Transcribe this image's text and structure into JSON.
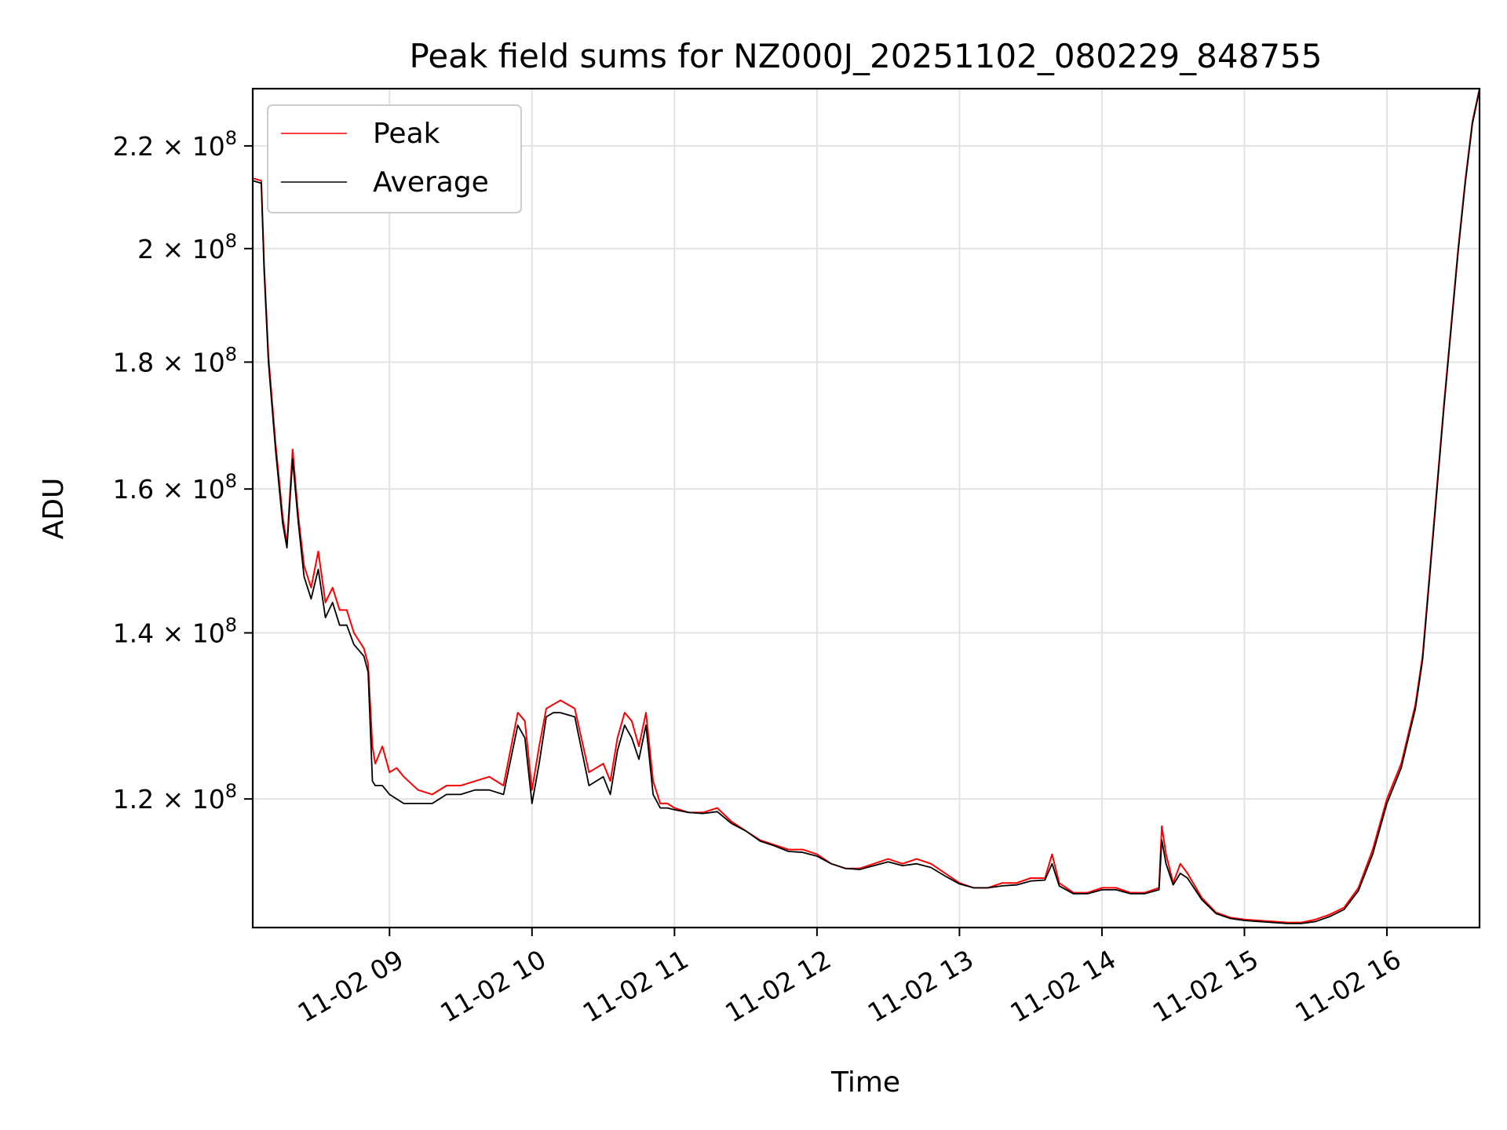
{
  "chart_data": {
    "type": "line",
    "title": "Peak field sums for NZ000J_20251102_080229_848755",
    "xlabel": "Time",
    "ylabel": "ADU",
    "grid": true,
    "legend_position": "top-left",
    "x_unit": "hours",
    "xlim": [
      8.04,
      16.65
    ],
    "ylim": [
      106500000,
      232000000
    ],
    "x_ticks": [
      {
        "value": 9,
        "label": "11-02 09"
      },
      {
        "value": 10,
        "label": "11-02 10"
      },
      {
        "value": 11,
        "label": "11-02 11"
      },
      {
        "value": 12,
        "label": "11-02 12"
      },
      {
        "value": 13,
        "label": "11-02 13"
      },
      {
        "value": 14,
        "label": "11-02 14"
      },
      {
        "value": 15,
        "label": "11-02 15"
      },
      {
        "value": 16,
        "label": "11-02 16"
      }
    ],
    "y_ticks": [
      {
        "value": 120000000,
        "mantissa": "1.2",
        "exp": "8"
      },
      {
        "value": 140000000,
        "mantissa": "1.4",
        "exp": "8"
      },
      {
        "value": 160000000,
        "mantissa": "1.6",
        "exp": "8"
      },
      {
        "value": 180000000,
        "mantissa": "1.8",
        "exp": "8"
      },
      {
        "value": 200000000,
        "mantissa": "2",
        "exp": "8"
      },
      {
        "value": 220000000,
        "mantissa": "2.2",
        "exp": "8"
      }
    ],
    "series": [
      {
        "name": "Peak",
        "color": "#ff0000",
        "x": [
          8.04,
          8.1,
          8.12,
          8.15,
          8.2,
          8.25,
          8.28,
          8.32,
          8.36,
          8.4,
          8.45,
          8.5,
          8.55,
          8.6,
          8.65,
          8.7,
          8.75,
          8.82,
          8.85,
          8.88,
          8.9,
          8.95,
          9.0,
          9.05,
          9.1,
          9.2,
          9.3,
          9.4,
          9.5,
          9.6,
          9.7,
          9.8,
          9.9,
          9.95,
          10.0,
          10.05,
          10.1,
          10.15,
          10.2,
          10.3,
          10.4,
          10.5,
          10.55,
          10.6,
          10.65,
          10.7,
          10.75,
          10.8,
          10.85,
          10.9,
          10.95,
          11.0,
          11.1,
          11.2,
          11.3,
          11.4,
          11.5,
          11.6,
          11.7,
          11.8,
          11.9,
          12.0,
          12.1,
          12.2,
          12.3,
          12.4,
          12.5,
          12.6,
          12.7,
          12.8,
          12.9,
          13.0,
          13.1,
          13.2,
          13.3,
          13.4,
          13.5,
          13.6,
          13.65,
          13.7,
          13.8,
          13.9,
          14.0,
          14.1,
          14.2,
          14.3,
          14.4,
          14.42,
          14.45,
          14.5,
          14.55,
          14.6,
          14.7,
          14.8,
          14.9,
          15.0,
          15.1,
          15.2,
          15.3,
          15.4,
          15.5,
          15.6,
          15.7,
          15.8,
          15.9,
          16.0,
          16.1,
          16.2,
          16.25,
          16.3,
          16.35,
          16.4,
          16.45,
          16.5,
          16.55,
          16.6,
          16.65
        ],
        "y": [
          213500000,
          213000000,
          197000000,
          181000000,
          167000000,
          156000000,
          152000000,
          166000000,
          156000000,
          149000000,
          146000000,
          151000000,
          144000000,
          146000000,
          143000000,
          143000000,
          140000000,
          138000000,
          136000000,
          126000000,
          124000000,
          126000000,
          123000000,
          123500000,
          122500000,
          121000000,
          120500000,
          121500000,
          121500000,
          122000000,
          122500000,
          121500000,
          130000000,
          129000000,
          121000000,
          126000000,
          130500000,
          131000000,
          131500000,
          130500000,
          123000000,
          124000000,
          122000000,
          127000000,
          130000000,
          129000000,
          126000000,
          130000000,
          122000000,
          119500000,
          119500000,
          119000000,
          118500000,
          118500000,
          119000000,
          117500000,
          116500000,
          115500000,
          115000000,
          114500000,
          114500000,
          114000000,
          113000000,
          112500000,
          112500000,
          113000000,
          113500000,
          113000000,
          113500000,
          113000000,
          112000000,
          111000000,
          110500000,
          110500000,
          111000000,
          111000000,
          111500000,
          111500000,
          114000000,
          111000000,
          110000000,
          110000000,
          110500000,
          110500000,
          110000000,
          110000000,
          110500000,
          117000000,
          114000000,
          111000000,
          113000000,
          112000000,
          109500000,
          108000000,
          107500000,
          107300000,
          107200000,
          107100000,
          107000000,
          107000000,
          107300000,
          107800000,
          108500000,
          110500000,
          114500000,
          120000000,
          124000000,
          131000000,
          137000000,
          148000000,
          160000000,
          173000000,
          186000000,
          200000000,
          213000000,
          225000000,
          232000000
        ]
      },
      {
        "name": "Average",
        "color": "#000000",
        "x": [
          8.04,
          8.1,
          8.12,
          8.15,
          8.2,
          8.25,
          8.28,
          8.32,
          8.36,
          8.4,
          8.45,
          8.5,
          8.55,
          8.6,
          8.65,
          8.7,
          8.75,
          8.82,
          8.85,
          8.88,
          8.9,
          8.95,
          9.0,
          9.05,
          9.1,
          9.2,
          9.3,
          9.4,
          9.5,
          9.6,
          9.7,
          9.8,
          9.9,
          9.95,
          10.0,
          10.05,
          10.1,
          10.15,
          10.2,
          10.3,
          10.4,
          10.5,
          10.55,
          10.6,
          10.65,
          10.7,
          10.75,
          10.8,
          10.85,
          10.9,
          10.95,
          11.0,
          11.1,
          11.2,
          11.3,
          11.4,
          11.5,
          11.6,
          11.7,
          11.8,
          11.9,
          12.0,
          12.1,
          12.2,
          12.3,
          12.4,
          12.5,
          12.6,
          12.7,
          12.8,
          12.9,
          13.0,
          13.1,
          13.2,
          13.3,
          13.4,
          13.5,
          13.6,
          13.65,
          13.7,
          13.8,
          13.9,
          14.0,
          14.1,
          14.2,
          14.3,
          14.4,
          14.42,
          14.45,
          14.5,
          14.55,
          14.6,
          14.7,
          14.8,
          14.9,
          15.0,
          15.1,
          15.2,
          15.3,
          15.4,
          15.5,
          15.6,
          15.7,
          15.8,
          15.9,
          16.0,
          16.1,
          16.2,
          16.25,
          16.3,
          16.35,
          16.4,
          16.45,
          16.5,
          16.55,
          16.6,
          16.65
        ],
        "y": [
          213000000,
          212500000,
          196000000,
          180000000,
          166000000,
          155000000,
          151500000,
          164500000,
          155000000,
          147500000,
          144500000,
          148500000,
          142000000,
          144000000,
          141000000,
          141000000,
          138500000,
          137000000,
          135000000,
          122000000,
          121500000,
          121500000,
          120500000,
          120000000,
          119500000,
          119500000,
          119500000,
          120500000,
          120500000,
          121000000,
          121000000,
          120500000,
          128500000,
          127000000,
          119500000,
          124000000,
          129500000,
          130000000,
          130000000,
          129500000,
          121500000,
          122500000,
          120500000,
          125500000,
          128500000,
          127000000,
          124500000,
          128500000,
          120500000,
          119000000,
          119000000,
          118800000,
          118500000,
          118400000,
          118600000,
          117300000,
          116500000,
          115400000,
          114900000,
          114300000,
          114200000,
          113800000,
          113000000,
          112500000,
          112400000,
          112800000,
          113200000,
          112800000,
          113000000,
          112600000,
          111700000,
          110900000,
          110500000,
          110500000,
          110700000,
          110800000,
          111200000,
          111300000,
          113000000,
          110700000,
          109900000,
          109900000,
          110300000,
          110300000,
          109900000,
          109900000,
          110300000,
          115500000,
          113000000,
          110800000,
          112000000,
          111500000,
          109300000,
          107900000,
          107400000,
          107200000,
          107100000,
          107000000,
          106900000,
          106900000,
          107100000,
          107600000,
          108300000,
          110200000,
          114000000,
          119500000,
          123500000,
          130500000,
          136500000,
          147500000,
          159500000,
          172500000,
          185500000,
          199500000,
          212500000,
          224500000,
          231800000
        ]
      }
    ]
  }
}
